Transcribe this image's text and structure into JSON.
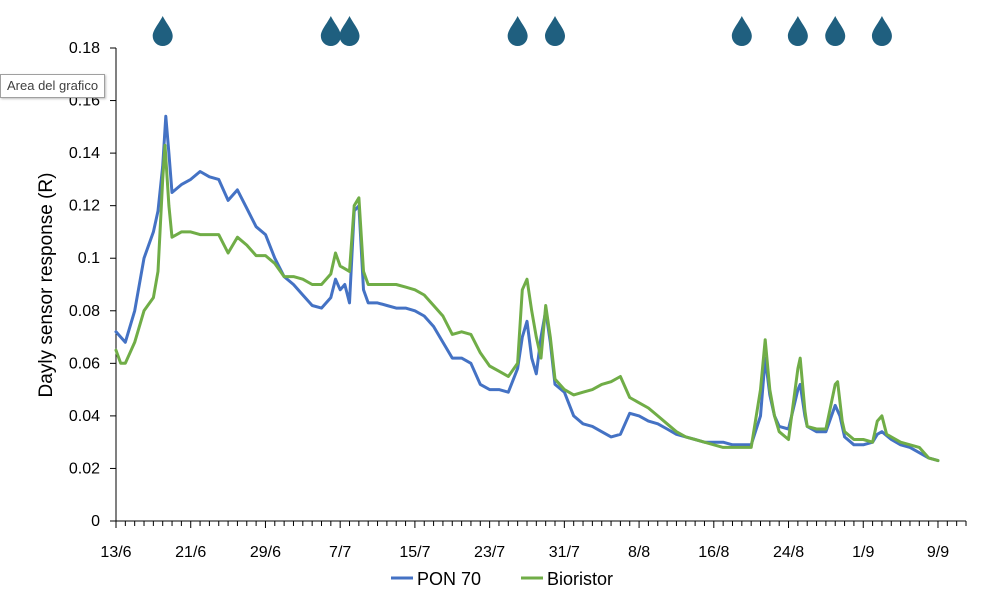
{
  "tooltip": {
    "text": "Area del grafico"
  },
  "colors": {
    "pon70": "#4472C4",
    "bioristor": "#70AD47",
    "drop": "#1F5F7F",
    "axis": "#000000"
  },
  "icons": {
    "irrigation": "water-drop-icon"
  },
  "chart_data": {
    "type": "line",
    "title": "",
    "xlabel": "",
    "ylabel": "Dayly sensor response (R)",
    "ylim": [
      0,
      0.18
    ],
    "yticks": [
      0,
      0.02,
      0.04,
      0.06,
      0.08,
      0.1,
      0.12,
      0.14,
      0.16,
      0.18
    ],
    "ytick_labels": [
      "0",
      "0.02",
      "0.04",
      "0.06",
      "0.08",
      "0.1",
      "0.12",
      "0.14",
      "0.16",
      "0.18"
    ],
    "xlim": [
      "2022-06-13",
      "2022-09-12"
    ],
    "xtick_labels": [
      "13/6",
      "21/6",
      "29/6",
      "7/7",
      "15/7",
      "23/7",
      "31/7",
      "8/8",
      "16/8",
      "24/8",
      "1/9",
      "9/9"
    ],
    "grid": false,
    "legend": "bottom",
    "irrigation_events": [
      "2022-06-18",
      "2022-07-06",
      "2022-07-08",
      "2022-07-26",
      "2022-07-30",
      "2022-08-19",
      "2022-08-25",
      "2022-08-29",
      "2022-09-03"
    ],
    "series": [
      {
        "name": "PON 70",
        "color": "#4472C4",
        "points": [
          [
            "2022-06-13",
            0.072
          ],
          [
            "2022-06-14",
            0.068
          ],
          [
            "2022-06-15",
            0.08
          ],
          [
            "2022-06-16",
            0.1
          ],
          [
            "2022-06-17",
            0.11
          ],
          [
            "2022-06-17 12:00",
            0.118
          ],
          [
            "2022-06-18",
            0.135
          ],
          [
            "2022-06-18 08:00",
            0.154
          ],
          [
            "2022-06-18 16:00",
            0.14
          ],
          [
            "2022-06-19",
            0.125
          ],
          [
            "2022-06-20",
            0.128
          ],
          [
            "2022-06-21",
            0.13
          ],
          [
            "2022-06-22",
            0.133
          ],
          [
            "2022-06-23",
            0.131
          ],
          [
            "2022-06-24",
            0.13
          ],
          [
            "2022-06-25",
            0.122
          ],
          [
            "2022-06-26",
            0.126
          ],
          [
            "2022-06-27",
            0.119
          ],
          [
            "2022-06-28",
            0.112
          ],
          [
            "2022-06-29",
            0.109
          ],
          [
            "2022-06-30",
            0.1
          ],
          [
            "2022-07-01",
            0.093
          ],
          [
            "2022-07-02",
            0.09
          ],
          [
            "2022-07-03",
            0.086
          ],
          [
            "2022-07-04",
            0.082
          ],
          [
            "2022-07-05",
            0.081
          ],
          [
            "2022-07-06",
            0.085
          ],
          [
            "2022-07-06 12:00",
            0.092
          ],
          [
            "2022-07-07",
            0.088
          ],
          [
            "2022-07-07 12:00",
            0.09
          ],
          [
            "2022-07-08",
            0.083
          ],
          [
            "2022-07-08 12:00",
            0.118
          ],
          [
            "2022-07-09",
            0.12
          ],
          [
            "2022-07-09 12:00",
            0.088
          ],
          [
            "2022-07-10",
            0.083
          ],
          [
            "2022-07-11",
            0.083
          ],
          [
            "2022-07-12",
            0.082
          ],
          [
            "2022-07-13",
            0.081
          ],
          [
            "2022-07-14",
            0.081
          ],
          [
            "2022-07-15",
            0.08
          ],
          [
            "2022-07-16",
            0.078
          ],
          [
            "2022-07-17",
            0.074
          ],
          [
            "2022-07-18",
            0.068
          ],
          [
            "2022-07-19",
            0.062
          ],
          [
            "2022-07-20",
            0.062
          ],
          [
            "2022-07-21",
            0.06
          ],
          [
            "2022-07-22",
            0.052
          ],
          [
            "2022-07-23",
            0.05
          ],
          [
            "2022-07-24",
            0.05
          ],
          [
            "2022-07-25",
            0.049
          ],
          [
            "2022-07-26",
            0.058
          ],
          [
            "2022-07-26 12:00",
            0.07
          ],
          [
            "2022-07-27",
            0.076
          ],
          [
            "2022-07-27 12:00",
            0.062
          ],
          [
            "2022-07-28",
            0.056
          ],
          [
            "2022-07-28 12:00",
            0.07
          ],
          [
            "2022-07-29",
            0.08
          ],
          [
            "2022-07-29 12:00",
            0.068
          ],
          [
            "2022-07-30",
            0.052
          ],
          [
            "2022-07-31",
            0.049
          ],
          [
            "2022-08-01",
            0.04
          ],
          [
            "2022-08-02",
            0.037
          ],
          [
            "2022-08-03",
            0.036
          ],
          [
            "2022-08-04",
            0.034
          ],
          [
            "2022-08-05",
            0.032
          ],
          [
            "2022-08-06",
            0.033
          ],
          [
            "2022-08-07",
            0.041
          ],
          [
            "2022-08-08",
            0.04
          ],
          [
            "2022-08-09",
            0.038
          ],
          [
            "2022-08-10",
            0.037
          ],
          [
            "2022-08-11",
            0.035
          ],
          [
            "2022-08-12",
            0.033
          ],
          [
            "2022-08-13",
            0.032
          ],
          [
            "2022-08-14",
            0.031
          ],
          [
            "2022-08-15",
            0.03
          ],
          [
            "2022-08-16",
            0.03
          ],
          [
            "2022-08-17",
            0.03
          ],
          [
            "2022-08-18",
            0.029
          ],
          [
            "2022-08-19",
            0.029
          ],
          [
            "2022-08-20",
            0.029
          ],
          [
            "2022-08-21",
            0.04
          ],
          [
            "2022-08-21 12:00",
            0.062
          ],
          [
            "2022-08-22",
            0.048
          ],
          [
            "2022-08-22 12:00",
            0.04
          ],
          [
            "2022-08-23",
            0.036
          ],
          [
            "2022-08-24",
            0.035
          ],
          [
            "2022-08-25",
            0.05
          ],
          [
            "2022-08-25 06:00",
            0.052
          ],
          [
            "2022-08-25 18:00",
            0.04
          ],
          [
            "2022-08-26",
            0.036
          ],
          [
            "2022-08-27",
            0.034
          ],
          [
            "2022-08-28",
            0.034
          ],
          [
            "2022-08-29",
            0.044
          ],
          [
            "2022-08-29 12:00",
            0.04
          ],
          [
            "2022-08-30",
            0.032
          ],
          [
            "2022-08-31",
            0.029
          ],
          [
            "2022-09-01",
            0.029
          ],
          [
            "2022-09-02",
            0.03
          ],
          [
            "2022-09-02 12:00",
            0.033
          ],
          [
            "2022-09-03",
            0.034
          ],
          [
            "2022-09-04",
            0.031
          ],
          [
            "2022-09-05",
            0.029
          ],
          [
            "2022-09-06",
            0.028
          ],
          [
            "2022-09-07",
            0.026
          ],
          [
            "2022-09-08",
            0.024
          ],
          [
            "2022-09-09",
            0.023
          ]
        ]
      },
      {
        "name": "Bioristor",
        "color": "#70AD47",
        "points": [
          [
            "2022-06-13",
            0.065
          ],
          [
            "2022-06-13 12:00",
            0.06
          ],
          [
            "2022-06-14",
            0.06
          ],
          [
            "2022-06-15",
            0.068
          ],
          [
            "2022-06-16",
            0.08
          ],
          [
            "2022-06-17",
            0.085
          ],
          [
            "2022-06-17 12:00",
            0.095
          ],
          [
            "2022-06-18",
            0.13
          ],
          [
            "2022-06-18 06:00",
            0.143
          ],
          [
            "2022-06-18 16:00",
            0.12
          ],
          [
            "2022-06-19",
            0.108
          ],
          [
            "2022-06-20",
            0.11
          ],
          [
            "2022-06-21",
            0.11
          ],
          [
            "2022-06-22",
            0.109
          ],
          [
            "2022-06-23",
            0.109
          ],
          [
            "2022-06-24",
            0.109
          ],
          [
            "2022-06-25",
            0.102
          ],
          [
            "2022-06-26",
            0.108
          ],
          [
            "2022-06-27",
            0.105
          ],
          [
            "2022-06-28",
            0.101
          ],
          [
            "2022-06-29",
            0.101
          ],
          [
            "2022-06-30",
            0.098
          ],
          [
            "2022-07-01",
            0.093
          ],
          [
            "2022-07-02",
            0.093
          ],
          [
            "2022-07-03",
            0.092
          ],
          [
            "2022-07-04",
            0.09
          ],
          [
            "2022-07-05",
            0.09
          ],
          [
            "2022-07-06",
            0.094
          ],
          [
            "2022-07-06 12:00",
            0.102
          ],
          [
            "2022-07-07",
            0.097
          ],
          [
            "2022-07-07 12:00",
            0.096
          ],
          [
            "2022-07-08",
            0.095
          ],
          [
            "2022-07-08 12:00",
            0.12
          ],
          [
            "2022-07-09",
            0.123
          ],
          [
            "2022-07-09 12:00",
            0.095
          ],
          [
            "2022-07-10",
            0.09
          ],
          [
            "2022-07-11",
            0.09
          ],
          [
            "2022-07-12",
            0.09
          ],
          [
            "2022-07-13",
            0.09
          ],
          [
            "2022-07-14",
            0.089
          ],
          [
            "2022-07-15",
            0.088
          ],
          [
            "2022-07-16",
            0.086
          ],
          [
            "2022-07-17",
            0.082
          ],
          [
            "2022-07-18",
            0.078
          ],
          [
            "2022-07-19",
            0.071
          ],
          [
            "2022-07-20",
            0.072
          ],
          [
            "2022-07-21",
            0.071
          ],
          [
            "2022-07-22",
            0.064
          ],
          [
            "2022-07-23",
            0.059
          ],
          [
            "2022-07-24",
            0.057
          ],
          [
            "2022-07-25",
            0.055
          ],
          [
            "2022-07-26",
            0.06
          ],
          [
            "2022-07-26 12:00",
            0.088
          ],
          [
            "2022-07-27",
            0.092
          ],
          [
            "2022-07-27 12:00",
            0.08
          ],
          [
            "2022-07-28",
            0.07
          ],
          [
            "2022-07-28 12:00",
            0.062
          ],
          [
            "2022-07-29",
            0.082
          ],
          [
            "2022-07-29 12:00",
            0.07
          ],
          [
            "2022-07-30",
            0.054
          ],
          [
            "2022-07-31",
            0.05
          ],
          [
            "2022-08-01",
            0.048
          ],
          [
            "2022-08-02",
            0.049
          ],
          [
            "2022-08-03",
            0.05
          ],
          [
            "2022-08-04",
            0.052
          ],
          [
            "2022-08-05",
            0.053
          ],
          [
            "2022-08-06",
            0.055
          ],
          [
            "2022-08-07",
            0.047
          ],
          [
            "2022-08-08",
            0.045
          ],
          [
            "2022-08-09",
            0.043
          ],
          [
            "2022-08-10",
            0.04
          ],
          [
            "2022-08-11",
            0.037
          ],
          [
            "2022-08-12",
            0.034
          ],
          [
            "2022-08-13",
            0.032
          ],
          [
            "2022-08-14",
            0.031
          ],
          [
            "2022-08-15",
            0.03
          ],
          [
            "2022-08-16",
            0.029
          ],
          [
            "2022-08-17",
            0.028
          ],
          [
            "2022-08-18",
            0.028
          ],
          [
            "2022-08-19",
            0.028
          ],
          [
            "2022-08-20",
            0.028
          ],
          [
            "2022-08-21",
            0.05
          ],
          [
            "2022-08-21 12:00",
            0.069
          ],
          [
            "2022-08-22",
            0.05
          ],
          [
            "2022-08-22 12:00",
            0.04
          ],
          [
            "2022-08-23",
            0.034
          ],
          [
            "2022-08-24",
            0.031
          ],
          [
            "2022-08-25",
            0.058
          ],
          [
            "2022-08-25 06:00",
            0.062
          ],
          [
            "2022-08-25 18:00",
            0.042
          ],
          [
            "2022-08-26",
            0.036
          ],
          [
            "2022-08-27",
            0.035
          ],
          [
            "2022-08-28",
            0.035
          ],
          [
            "2022-08-29",
            0.052
          ],
          [
            "2022-08-29 06:00",
            0.053
          ],
          [
            "2022-08-29 18:00",
            0.038
          ],
          [
            "2022-08-30",
            0.034
          ],
          [
            "2022-08-31",
            0.031
          ],
          [
            "2022-09-01",
            0.031
          ],
          [
            "2022-09-02",
            0.03
          ],
          [
            "2022-09-02 12:00",
            0.038
          ],
          [
            "2022-09-03",
            0.04
          ],
          [
            "2022-09-03 12:00",
            0.033
          ],
          [
            "2022-09-04",
            0.032
          ],
          [
            "2022-09-05",
            0.03
          ],
          [
            "2022-09-06",
            0.029
          ],
          [
            "2022-09-07",
            0.028
          ],
          [
            "2022-09-08",
            0.024
          ],
          [
            "2022-09-09",
            0.023
          ]
        ]
      }
    ]
  }
}
